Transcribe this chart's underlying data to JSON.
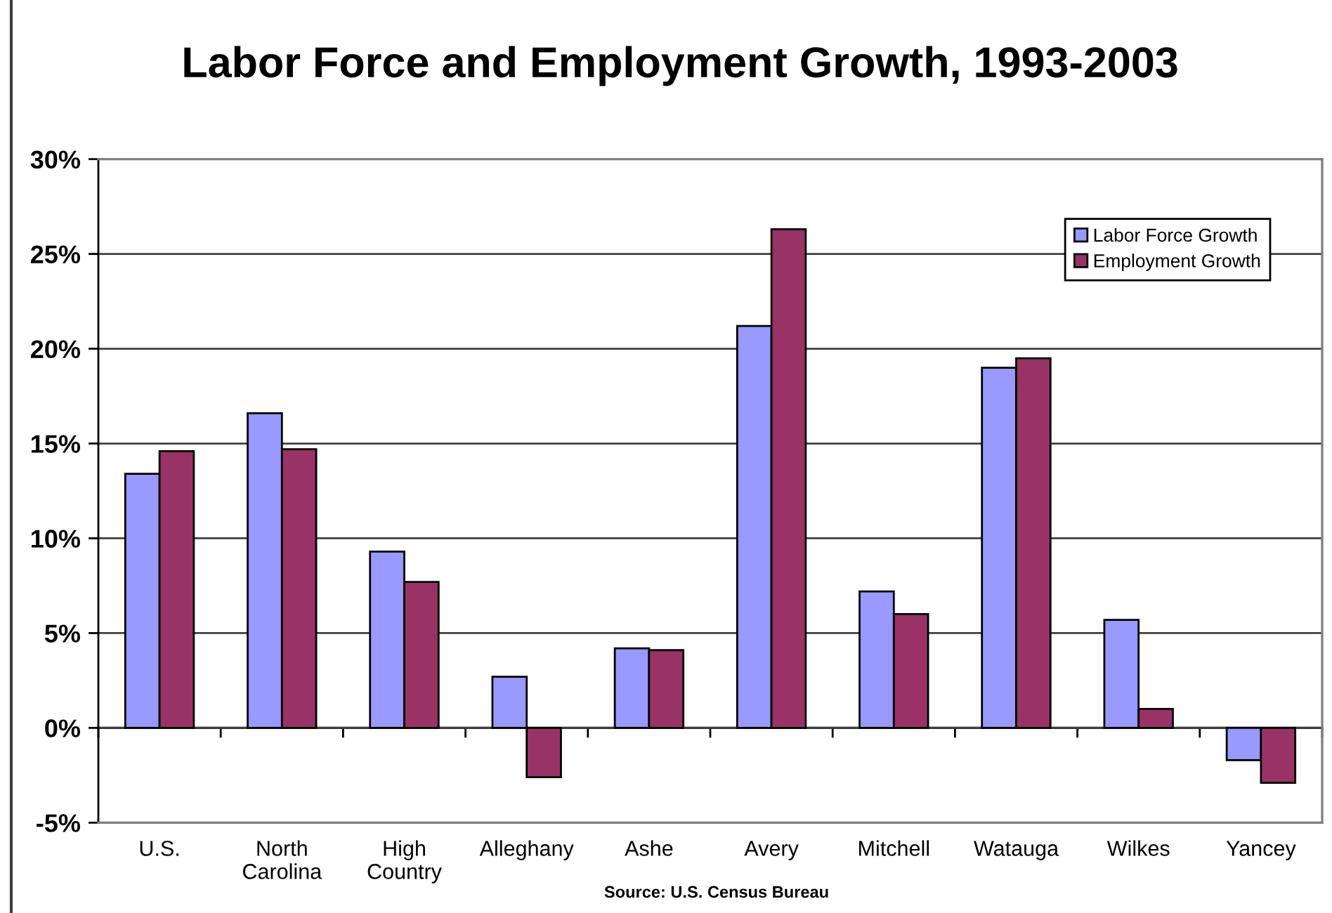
{
  "chart_data": {
    "type": "bar",
    "title": "Labor Force and Employment Growth, 1993-2003",
    "categories": [
      "U.S.",
      "North Carolina",
      "High Country",
      "Alleghany",
      "Ashe",
      "Avery",
      "Mitchell",
      "Watauga",
      "Wilkes",
      "Yancey"
    ],
    "series": [
      {
        "name": "Labor Force Growth",
        "color": "#9999ff",
        "values": [
          13.4,
          16.6,
          9.3,
          2.7,
          4.2,
          21.2,
          7.2,
          19.0,
          5.7,
          -1.7
        ]
      },
      {
        "name": "Employment Growth",
        "color": "#993366",
        "values": [
          14.6,
          14.7,
          7.7,
          -2.6,
          4.1,
          26.3,
          6.0,
          19.5,
          1.0,
          -2.9
        ]
      }
    ],
    "ylim": [
      -5,
      30
    ],
    "yticks": [
      {
        "value": -5,
        "label": "-5%"
      },
      {
        "value": 0,
        "label": "0%"
      },
      {
        "value": 5,
        "label": "5%"
      },
      {
        "value": 10,
        "label": "10%"
      },
      {
        "value": 15,
        "label": "15%"
      },
      {
        "value": 20,
        "label": "20%"
      },
      {
        "value": 25,
        "label": "25%"
      },
      {
        "value": 30,
        "label": "30%"
      }
    ],
    "grid": "y",
    "legend": "top right",
    "annotations": [
      "Source: U.S. Census Bureau"
    ]
  }
}
